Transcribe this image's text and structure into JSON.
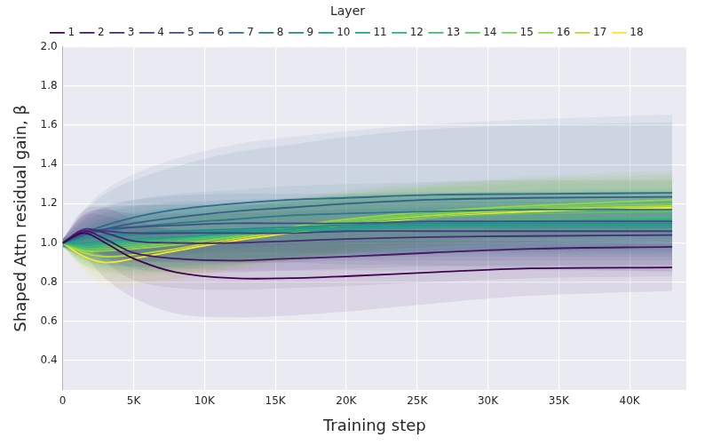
{
  "chart_data": {
    "type": "line",
    "xlabel": "Training step",
    "ylabel": "Shaped Attn residual gain, β",
    "legend_title": "Layer",
    "legend": "top",
    "grid": true,
    "x": [
      0,
      1500,
      3000,
      5000,
      8000,
      12000,
      16000,
      20000,
      26000,
      33000,
      43000
    ],
    "xlim": [
      0,
      44000
    ],
    "xticks": [
      0,
      {
        "value": 5000,
        "label": "5K"
      },
      {
        "value": 10000,
        "label": "10K"
      },
      {
        "value": 15000,
        "label": "15K"
      },
      {
        "value": 20000,
        "label": "20K"
      },
      {
        "value": 25000,
        "label": "25K"
      },
      {
        "value": 30000,
        "label": "30K"
      },
      {
        "value": 35000,
        "label": "35K"
      },
      {
        "value": 40000,
        "label": "40K"
      }
    ],
    "ylim": [
      0.25,
      2.0
    ],
    "yticks": [
      0.4,
      0.6,
      0.8,
      {
        "value": 1,
        "label": "1.0"
      },
      1.2,
      1.4,
      1.6,
      1.8,
      {
        "value": 2,
        "label": "2.0"
      }
    ],
    "series": [
      {
        "name": "1",
        "color": "#440154",
        "values": [
          1.0,
          1.05,
          1.0,
          0.92,
          0.85,
          0.82,
          0.82,
          0.83,
          0.85,
          0.87,
          0.875
        ],
        "lower": [
          0.98,
          0.93,
          0.82,
          0.72,
          0.64,
          0.62,
          0.63,
          0.65,
          0.69,
          0.73,
          0.755
        ],
        "upper": [
          1.02,
          1.17,
          1.18,
          1.12,
          1.06,
          1.02,
          1.01,
          1.01,
          1.01,
          1.01,
          0.995
        ]
      },
      {
        "name": "2",
        "color": "#481769",
        "values": [
          1.0,
          1.06,
          1.02,
          0.95,
          0.92,
          0.91,
          0.92,
          0.93,
          0.95,
          0.97,
          0.98
        ],
        "lower": [
          0.98,
          0.98,
          0.9,
          0.81,
          0.77,
          0.76,
          0.77,
          0.78,
          0.8,
          0.82,
          0.83
        ],
        "upper": [
          1.02,
          1.14,
          1.14,
          1.09,
          1.07,
          1.06,
          1.07,
          1.08,
          1.1,
          1.12,
          1.13
        ]
      },
      {
        "name": "3",
        "color": "#472a7a",
        "values": [
          1.0,
          1.07,
          1.05,
          1.01,
          1.0,
          1.0,
          1.01,
          1.02,
          1.03,
          1.035,
          1.04
        ],
        "lower": [
          0.98,
          0.99,
          0.93,
          0.87,
          0.85,
          0.85,
          0.86,
          0.87,
          0.88,
          0.885,
          0.89
        ],
        "upper": [
          1.02,
          1.15,
          1.17,
          1.15,
          1.15,
          1.15,
          1.16,
          1.17,
          1.18,
          1.185,
          1.19
        ]
      },
      {
        "name": "4",
        "color": "#433d84",
        "values": [
          1.0,
          1.06,
          1.06,
          1.05,
          1.05,
          1.05,
          1.05,
          1.06,
          1.06,
          1.06,
          1.06
        ],
        "lower": [
          0.98,
          0.98,
          0.94,
          0.91,
          0.9,
          0.9,
          0.9,
          0.91,
          0.91,
          0.91,
          0.91
        ],
        "upper": [
          1.02,
          1.14,
          1.18,
          1.19,
          1.2,
          1.2,
          1.2,
          1.21,
          1.21,
          1.21,
          1.21
        ]
      },
      {
        "name": "5",
        "color": "#3d4e8a",
        "values": [
          1.0,
          1.05,
          1.07,
          1.08,
          1.09,
          1.1,
          1.1,
          1.1,
          1.11,
          1.11,
          1.11
        ],
        "lower": [
          0.98,
          0.97,
          0.95,
          0.94,
          0.94,
          0.95,
          0.95,
          0.95,
          0.96,
          0.96,
          0.96
        ],
        "upper": [
          1.02,
          1.13,
          1.19,
          1.22,
          1.24,
          1.25,
          1.25,
          1.25,
          1.26,
          1.26,
          1.26
        ]
      },
      {
        "name": "6",
        "color": "#355e8d",
        "values": [
          1.0,
          1.04,
          1.07,
          1.1,
          1.13,
          1.16,
          1.18,
          1.2,
          1.22,
          1.23,
          1.235
        ],
        "lower": [
          0.98,
          0.92,
          0.89,
          0.88,
          0.87,
          0.86,
          0.86,
          0.86,
          0.86,
          0.86,
          0.855
        ],
        "upper": [
          1.02,
          1.16,
          1.25,
          1.32,
          1.39,
          1.46,
          1.5,
          1.54,
          1.58,
          1.6,
          1.615
        ]
      },
      {
        "name": "7",
        "color": "#2e6d8e",
        "values": [
          1.0,
          1.05,
          1.09,
          1.13,
          1.17,
          1.2,
          1.22,
          1.23,
          1.245,
          1.25,
          1.255
        ],
        "lower": [
          0.98,
          0.93,
          0.91,
          0.91,
          0.91,
          0.9,
          0.9,
          0.89,
          0.885,
          0.87,
          0.855
        ],
        "upper": [
          1.02,
          1.17,
          1.27,
          1.35,
          1.43,
          1.5,
          1.54,
          1.57,
          1.605,
          1.63,
          1.655
        ]
      },
      {
        "name": "8",
        "color": "#297b8e",
        "values": [
          1.0,
          1.04,
          1.06,
          1.08,
          1.1,
          1.12,
          1.14,
          1.15,
          1.16,
          1.17,
          1.17
        ],
        "lower": [
          0.98,
          0.96,
          0.94,
          0.94,
          0.95,
          0.97,
          0.99,
          1.0,
          1.01,
          1.02,
          1.02
        ],
        "upper": [
          1.02,
          1.12,
          1.18,
          1.22,
          1.25,
          1.27,
          1.29,
          1.3,
          1.31,
          1.32,
          1.32
        ]
      },
      {
        "name": "9",
        "color": "#23898e",
        "values": [
          1.0,
          1.03,
          1.04,
          1.05,
          1.06,
          1.07,
          1.08,
          1.09,
          1.1,
          1.1,
          1.1
        ],
        "lower": [
          0.98,
          0.95,
          0.92,
          0.91,
          0.91,
          0.92,
          0.93,
          0.94,
          0.95,
          0.95,
          0.95
        ],
        "upper": [
          1.02,
          1.11,
          1.16,
          1.19,
          1.21,
          1.22,
          1.23,
          1.24,
          1.25,
          1.25,
          1.25
        ]
      },
      {
        "name": "10",
        "color": "#1f958b",
        "values": [
          1.0,
          1.02,
          1.03,
          1.04,
          1.05,
          1.06,
          1.07,
          1.08,
          1.09,
          1.09,
          1.09
        ],
        "lower": [
          0.98,
          0.94,
          0.91,
          0.9,
          0.9,
          0.91,
          0.92,
          0.93,
          0.94,
          0.94,
          0.94
        ],
        "upper": [
          1.02,
          1.1,
          1.15,
          1.18,
          1.2,
          1.21,
          1.22,
          1.23,
          1.24,
          1.24,
          1.24
        ]
      },
      {
        "name": "11",
        "color": "#1fa287",
        "values": [
          1.0,
          1.0,
          1.01,
          1.02,
          1.03,
          1.05,
          1.06,
          1.07,
          1.08,
          1.08,
          1.08
        ],
        "lower": [
          0.98,
          0.92,
          0.89,
          0.88,
          0.88,
          0.9,
          0.91,
          0.92,
          0.93,
          0.93,
          0.93
        ],
        "upper": [
          1.02,
          1.08,
          1.13,
          1.16,
          1.18,
          1.2,
          1.21,
          1.22,
          1.23,
          1.23,
          1.23
        ]
      },
      {
        "name": "12",
        "color": "#2aaf7f",
        "values": [
          1.0,
          0.99,
          1.0,
          1.01,
          1.03,
          1.05,
          1.07,
          1.09,
          1.1,
          1.11,
          1.12
        ],
        "lower": [
          0.98,
          0.91,
          0.88,
          0.87,
          0.88,
          0.9,
          0.92,
          0.94,
          0.95,
          0.96,
          0.97
        ],
        "upper": [
          1.02,
          1.07,
          1.12,
          1.15,
          1.18,
          1.2,
          1.22,
          1.24,
          1.25,
          1.26,
          1.27
        ]
      },
      {
        "name": "13",
        "color": "#3dbc74",
        "values": [
          1.0,
          0.98,
          0.99,
          1.0,
          1.02,
          1.04,
          1.06,
          1.08,
          1.1,
          1.12,
          1.13
        ],
        "lower": [
          0.98,
          0.9,
          0.87,
          0.86,
          0.87,
          0.89,
          0.91,
          0.93,
          0.95,
          0.97,
          0.98
        ],
        "upper": [
          1.02,
          1.06,
          1.11,
          1.14,
          1.17,
          1.19,
          1.21,
          1.23,
          1.25,
          1.27,
          1.28
        ]
      },
      {
        "name": "14",
        "color": "#56c667",
        "values": [
          1.0,
          0.97,
          0.98,
          0.99,
          1.01,
          1.04,
          1.07,
          1.1,
          1.13,
          1.15,
          1.16
        ],
        "lower": [
          0.98,
          0.89,
          0.86,
          0.85,
          0.86,
          0.89,
          0.92,
          0.95,
          0.98,
          1.0,
          1.01
        ],
        "upper": [
          1.02,
          1.05,
          1.1,
          1.13,
          1.16,
          1.19,
          1.22,
          1.25,
          1.28,
          1.3,
          1.31
        ]
      },
      {
        "name": "15",
        "color": "#75d054",
        "values": [
          1.0,
          0.97,
          0.97,
          0.98,
          1.0,
          1.03,
          1.07,
          1.11,
          1.15,
          1.18,
          1.2
        ],
        "lower": [
          0.98,
          0.89,
          0.85,
          0.84,
          0.85,
          0.88,
          0.92,
          0.96,
          1.0,
          1.03,
          1.05
        ],
        "upper": [
          1.02,
          1.05,
          1.09,
          1.12,
          1.15,
          1.18,
          1.22,
          1.26,
          1.3,
          1.33,
          1.35
        ]
      },
      {
        "name": "16",
        "color": "#95d840",
        "values": [
          1.0,
          0.96,
          0.96,
          0.97,
          0.99,
          1.03,
          1.08,
          1.12,
          1.16,
          1.19,
          1.22
        ],
        "lower": [
          0.98,
          0.88,
          0.84,
          0.83,
          0.84,
          0.88,
          0.93,
          0.97,
          1.01,
          1.04,
          1.07
        ],
        "upper": [
          1.02,
          1.04,
          1.08,
          1.11,
          1.14,
          1.18,
          1.23,
          1.27,
          1.31,
          1.34,
          1.37
        ]
      },
      {
        "name": "17",
        "color": "#bade28",
        "values": [
          1.0,
          0.95,
          0.93,
          0.94,
          0.97,
          1.02,
          1.06,
          1.1,
          1.14,
          1.17,
          1.19
        ],
        "lower": [
          0.98,
          0.87,
          0.81,
          0.8,
          0.82,
          0.87,
          0.91,
          0.95,
          0.99,
          1.02,
          1.04
        ],
        "upper": [
          1.02,
          1.03,
          1.05,
          1.08,
          1.12,
          1.17,
          1.21,
          1.25,
          1.29,
          1.32,
          1.34
        ]
      },
      {
        "name": "18",
        "color": "#fde725",
        "values": [
          1.0,
          0.93,
          0.9,
          0.92,
          0.96,
          1.01,
          1.05,
          1.09,
          1.13,
          1.16,
          1.18
        ],
        "lower": [
          0.98,
          0.85,
          0.78,
          0.78,
          0.81,
          0.86,
          0.9,
          0.94,
          0.98,
          1.01,
          1.03
        ],
        "upper": [
          1.02,
          1.01,
          1.02,
          1.06,
          1.11,
          1.16,
          1.2,
          1.24,
          1.28,
          1.31,
          1.33
        ]
      }
    ]
  }
}
